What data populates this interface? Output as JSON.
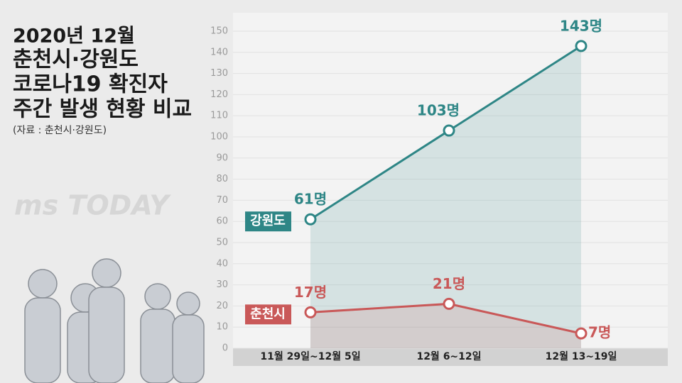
{
  "title_lines": [
    "2020년 12월",
    "춘천시·강원도",
    "코로나19 확진자",
    "주간 발생 현황 비교"
  ],
  "source": "(자료 : 춘천시·강원도)",
  "watermark": "ms TODAY",
  "chart_data": {
    "type": "line",
    "categories": [
      "11월 29일~12월 5일",
      "12월 6~12일",
      "12월 13~19일"
    ],
    "series": [
      {
        "name": "강원도",
        "color": "#2e8686",
        "values": [
          61,
          103,
          143
        ],
        "value_labels": [
          "61명",
          "103명",
          "143명"
        ]
      },
      {
        "name": "춘천시",
        "color": "#c95858",
        "values": [
          17,
          21,
          7
        ],
        "value_labels": [
          "17명",
          "21명",
          "7명"
        ]
      }
    ],
    "ylim": [
      0,
      150
    ],
    "yticks": [
      0,
      10,
      20,
      30,
      40,
      50,
      60,
      70,
      80,
      90,
      100,
      110,
      120,
      130,
      140,
      150
    ],
    "grid": true,
    "area": true
  }
}
